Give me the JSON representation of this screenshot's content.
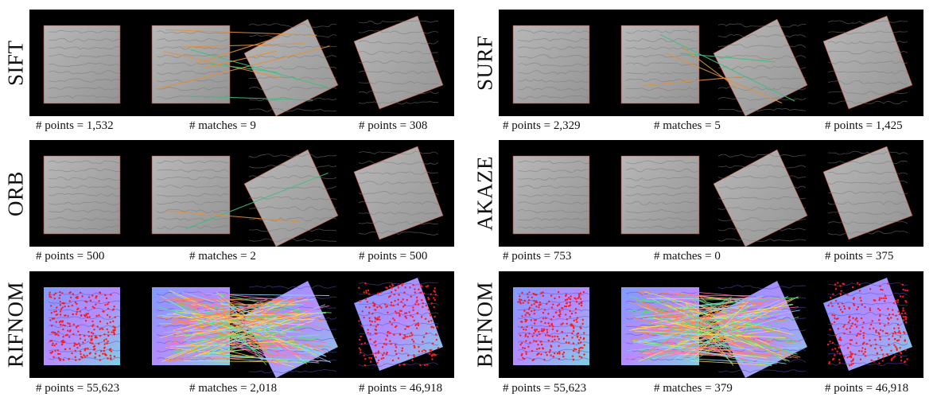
{
  "panels": [
    {
      "method": "SIFT",
      "left_points": "# points = 1,532",
      "matches": "# matches = 9",
      "right_points": "# points = 308",
      "style": "gray",
      "lines": 9
    },
    {
      "method": "SURF",
      "left_points": "# points = 2,329",
      "matches": "# matches = 5",
      "right_points": "# points = 1,425",
      "style": "gray",
      "lines": 5
    },
    {
      "method": "ORB",
      "left_points": "# points = 500",
      "matches": "# matches = 2",
      "right_points": "# points = 500",
      "style": "gray",
      "lines": 2
    },
    {
      "method": "AKAZE",
      "left_points": "# points = 753",
      "matches": "# matches = 0",
      "right_points": "# points = 375",
      "style": "gray",
      "lines": 0
    },
    {
      "method": "RIFNOM",
      "left_points": "# points = 55,623",
      "matches": "# matches = 2,018",
      "right_points": "# points = 46,918",
      "style": "color",
      "lines": 2018
    },
    {
      "method": "BIFNOM",
      "left_points": "# points = 55,623",
      "matches": "# matches = 379",
      "right_points": "# points = 46,918",
      "style": "color",
      "lines": 379
    }
  ],
  "colors": {
    "background": "#000000",
    "surface_gray": "#a9a9a9",
    "match_orange": "#e0913a",
    "match_green": "#3fbf7f",
    "keypoint_red": "#ff1a1a"
  }
}
